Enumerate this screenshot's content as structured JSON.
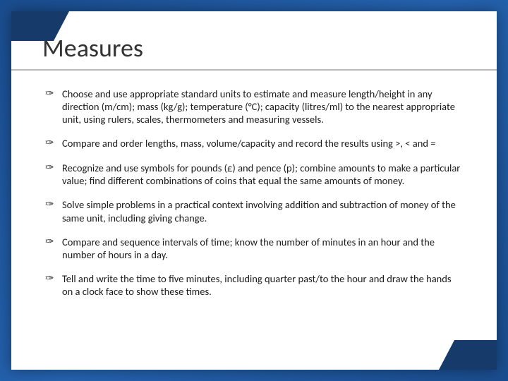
{
  "slide": {
    "title": "Measures",
    "bullets": [
      "Choose and use appropriate standard units to estimate and measure length/height in any direction (m/cm); mass (kg/g); temperature (°C); capacity (litres/ml) to the nearest appropriate unit, using rulers, scales, thermometers and measuring vessels.",
      "Compare and order lengths, mass, volume/capacity and record the results using >, < and =",
      "Recognize and use symbols for pounds (£) and pence (p); combine amounts to make a particular value; find different combinations of coins that equal the same amounts of money.",
      "Solve simple problems in a practical context involving addition and subtraction of money of the same unit, including giving change.",
      "Compare and sequence intervals of time; know the number of minutes in an hour and the number of hours in a day.",
      "Tell and write the time to five minutes, including quarter past/to the hour and draw the hands on a clock face to show these times."
    ],
    "bullet_glyph": "✑"
  },
  "style": {
    "frame_gradient_start": "#1a4d8f",
    "frame_gradient_mid": "#2563b0",
    "corner_color": "#163b6b",
    "background": "#ffffff",
    "title_color": "#333333",
    "title_fontsize": 36,
    "body_fontsize": 14.5,
    "body_color": "#1a1a1a",
    "underline_color": "#b8b8b8"
  }
}
